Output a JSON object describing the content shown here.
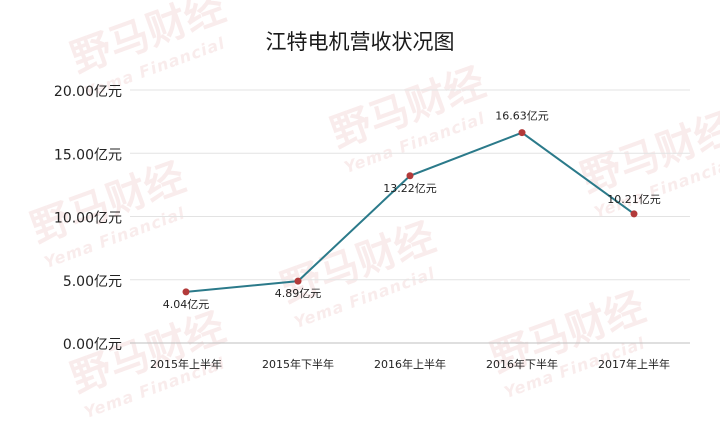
{
  "chart_data": {
    "type": "line",
    "title": "江特电机营收状况图",
    "categories": [
      "2015年上半年",
      "2015年下半年",
      "2016年上半年",
      "2016年下半年",
      "2017年上半年"
    ],
    "series": [
      {
        "values": [
          4.04,
          4.89,
          13.22,
          16.63,
          10.21
        ],
        "labels": [
          "4.04亿元",
          "4.89亿元",
          "13.22亿元",
          "16.63亿元",
          "10.21亿元"
        ],
        "color": "#2b7a8a",
        "marker_color": "#b23a3a"
      }
    ],
    "yticks": [
      "0.00亿元",
      "5.00亿元",
      "10.00亿元",
      "15.00亿元",
      "20.00亿元"
    ],
    "ylim": [
      0,
      20
    ],
    "grid": true
  },
  "watermark": {
    "cn": "野马财经",
    "en": "Yema Financial"
  }
}
